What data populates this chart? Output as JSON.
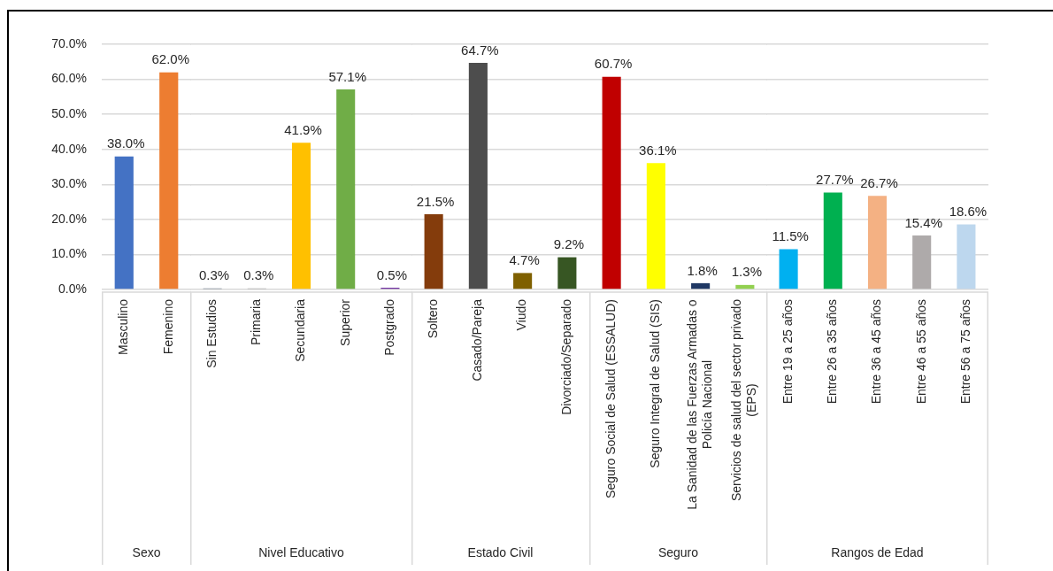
{
  "chart_data": [
    {
      "type": "bar",
      "xlabel": "Sexo",
      "categories": [
        "Masculino",
        "Femenino"
      ],
      "values": [
        38.0,
        62.0
      ],
      "colors": [
        "#4472c4",
        "#ed7d31"
      ],
      "value_labels": [
        "38.0%",
        "62.0%"
      ],
      "ylim": [
        0,
        70
      ],
      "yticks": [
        {
          "value": 0,
          "label": "0.0%"
        },
        {
          "value": 10,
          "label": "10.0%"
        },
        {
          "value": 20,
          "label": "20.0%"
        },
        {
          "value": 30,
          "label": "30.0%"
        },
        {
          "value": 40,
          "label": "40.0%"
        },
        {
          "value": 50,
          "label": "50.0%"
        },
        {
          "value": 60,
          "label": "60.0%"
        },
        {
          "value": 70,
          "label": "70.0%"
        }
      ],
      "grid": "y"
    },
    {
      "type": "bar",
      "xlabel": "Nivel Educativo",
      "categories": [
        "Sin Estudios",
        "Primaria",
        "Secundaria",
        "Superior",
        "Postgrado"
      ],
      "values": [
        0.3,
        0.3,
        41.9,
        57.1,
        0.5
      ],
      "colors": [
        "#44546a",
        "#8c8c8c",
        "#ffc000",
        "#70ad47",
        "#7030a0"
      ],
      "value_labels": [
        "0.3%",
        "0.3%",
        "41.9%",
        "57.1%",
        "0.5%"
      ],
      "ylim": [
        0,
        70
      ],
      "yticks": [
        {
          "value": 0,
          "label": null
        },
        {
          "value": 10,
          "label": null
        },
        {
          "value": 20,
          "label": null
        },
        {
          "value": 30,
          "label": null
        },
        {
          "value": 40,
          "label": null
        },
        {
          "value": 50,
          "label": null
        },
        {
          "value": 60,
          "label": null
        },
        {
          "value": 70,
          "label": null
        }
      ],
      "grid": "y",
      "tick_labels": "x"
    },
    {
      "type": "bar",
      "xlabel": "Estado Civil",
      "categories": [
        "Soltero",
        "Casado/Pareja",
        "Viudo",
        "Divorciado/Separado"
      ],
      "values": [
        21.5,
        64.7,
        4.7,
        9.2
      ],
      "colors": [
        "#843c0c",
        "#4d4d4d",
        "#7f6000",
        "#375623"
      ],
      "value_labels": [
        "21.5%",
        "64.7%",
        "4.7%",
        "9.2%"
      ],
      "ylim": [
        0,
        70
      ],
      "yticks": [
        {
          "value": 0,
          "label": null
        },
        {
          "value": 10,
          "label": null
        },
        {
          "value": 20,
          "label": null
        },
        {
          "value": 30,
          "label": null
        },
        {
          "value": 40,
          "label": null
        },
        {
          "value": 50,
          "label": null
        },
        {
          "value": 60,
          "label": null
        },
        {
          "value": 70,
          "label": null
        }
      ],
      "grid": "y",
      "tick_labels": "x"
    },
    {
      "type": "bar",
      "xlabel": "Seguro",
      "categories": [
        "Seguro Social de Salud (ESSALUD)",
        "Seguro Integral de Salud (SIS)",
        "La Sanidad de las Fuerzas Armadas o Policía Nacional",
        "Servicios de salud del sector privado (EPS)"
      ],
      "values": [
        60.7,
        36.1,
        1.8,
        1.3
      ],
      "colors": [
        "#c00000",
        "#ffff00",
        "#1f3864",
        "#92d050"
      ],
      "value_labels": [
        "60.7%",
        "36.1%",
        "1.8%",
        "1.3%"
      ],
      "ylim": [
        0,
        70
      ],
      "yticks": [
        {
          "value": 0,
          "label": null
        },
        {
          "value": 10,
          "label": null
        },
        {
          "value": 20,
          "label": null
        },
        {
          "value": 30,
          "label": null
        },
        {
          "value": 40,
          "label": null
        },
        {
          "value": 50,
          "label": null
        },
        {
          "value": 60,
          "label": null
        },
        {
          "value": 70,
          "label": null
        }
      ],
      "grid": "y",
      "tick_labels": "x"
    },
    {
      "type": "bar",
      "xlabel": "Rangos de Edad",
      "categories": [
        "Entre 19 a 25 años",
        "Entre 26 a 35 años",
        "Entre 36 a 45 años",
        "Entre 46 a 55 años",
        "Entre 56 a 75 años"
      ],
      "values": [
        11.5,
        27.7,
        26.7,
        15.4,
        18.6
      ],
      "colors": [
        "#00b0f0",
        "#00b050",
        "#f4b183",
        "#aeaaaa",
        "#bdd7ee"
      ],
      "value_labels": [
        "11.5%",
        "27.7%",
        "26.7%",
        "15.4%",
        "18.6%"
      ],
      "ylim": [
        0,
        70
      ],
      "yticks": [
        {
          "value": 0,
          "label": null
        },
        {
          "value": 10,
          "label": null
        },
        {
          "value": 20,
          "label": null
        },
        {
          "value": 30,
          "label": null
        },
        {
          "value": 40,
          "label": null
        },
        {
          "value": 50,
          "label": null
        },
        {
          "value": 60,
          "label": null
        },
        {
          "value": 70,
          "label": null
        }
      ],
      "grid": "y",
      "tick_labels": "x"
    }
  ]
}
